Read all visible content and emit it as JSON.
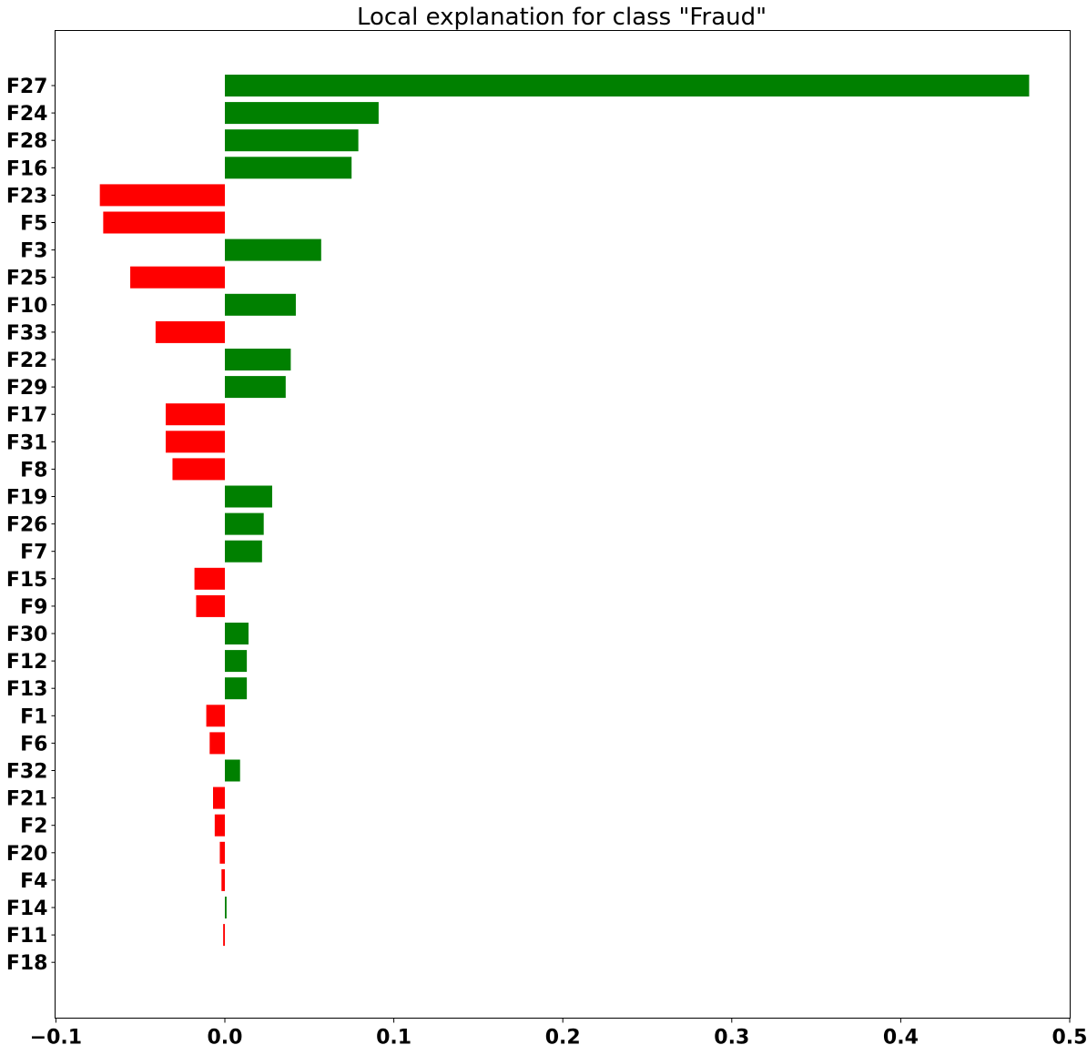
{
  "chart_data": {
    "type": "bar",
    "orientation": "horizontal",
    "title": "Local explanation for class \"Fraud\"",
    "xlabel": "",
    "ylabel": "",
    "xlim": [
      -0.1,
      0.5
    ],
    "xticks": [
      -0.1,
      0.0,
      0.1,
      0.2,
      0.3,
      0.4,
      0.5
    ],
    "xtick_labels": [
      "−0.1",
      "0.0",
      "0.1",
      "0.2",
      "0.3",
      "0.4",
      "0.5"
    ],
    "grid": false,
    "legend": "none",
    "colors": {
      "positive": "#008000",
      "negative": "#ff0000"
    },
    "categories": [
      "F27",
      "F24",
      "F28",
      "F16",
      "F23",
      "F5",
      "F3",
      "F25",
      "F10",
      "F33",
      "F22",
      "F29",
      "F17",
      "F31",
      "F8",
      "F19",
      "F26",
      "F7",
      "F15",
      "F9",
      "F30",
      "F12",
      "F13",
      "F1",
      "F6",
      "F32",
      "F21",
      "F2",
      "F20",
      "F4",
      "F14",
      "F11",
      "F18"
    ],
    "values": [
      0.476,
      0.091,
      0.079,
      0.075,
      -0.074,
      -0.072,
      0.057,
      -0.056,
      0.042,
      -0.041,
      0.039,
      0.036,
      -0.035,
      -0.035,
      -0.031,
      0.028,
      0.023,
      0.022,
      -0.018,
      -0.017,
      0.014,
      0.013,
      0.013,
      -0.011,
      -0.009,
      0.009,
      -0.007,
      -0.006,
      -0.003,
      -0.002,
      0.001,
      -0.001,
      0.0
    ]
  }
}
